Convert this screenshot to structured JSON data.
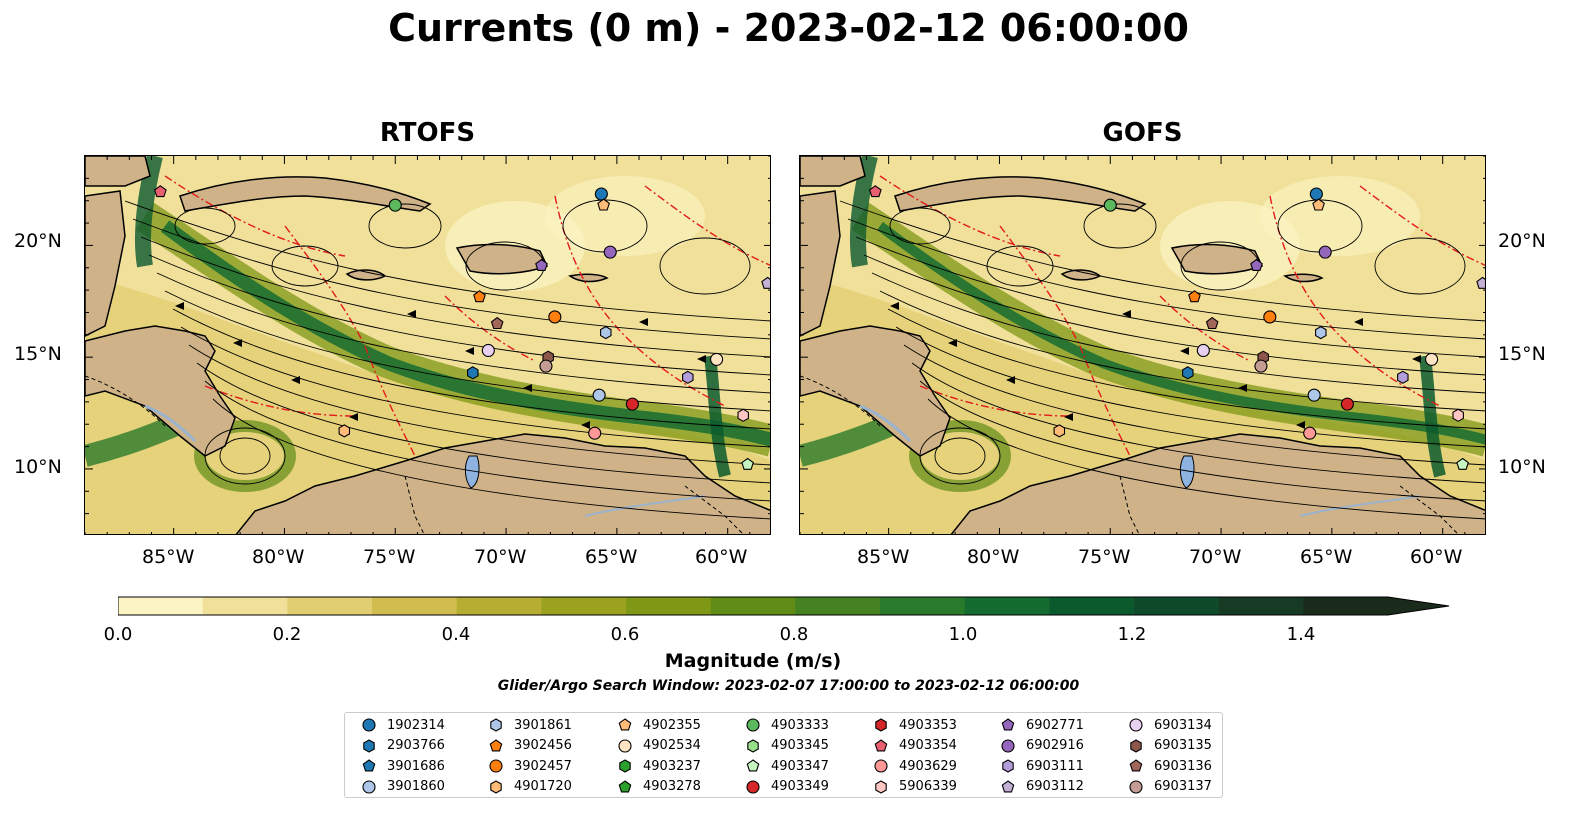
{
  "title": "Currents (0 m) - 2023-02-12 06:00:00",
  "panels": [
    {
      "title": "RTOFS"
    },
    {
      "title": "GOFS"
    }
  ],
  "x_ticks": [
    "85°W",
    "80°W",
    "75°W",
    "70°W",
    "65°W",
    "60°W"
  ],
  "y_ticks": [
    "20°N",
    "15°N",
    "10°N"
  ],
  "map_extent": {
    "lon": [
      -89,
      -58
    ],
    "lat": [
      7,
      24
    ]
  },
  "colorbar": {
    "label": "Magnitude (m/s)",
    "ticks": [
      "0.0",
      "0.2",
      "0.4",
      "0.6",
      "0.8",
      "1.0",
      "1.2",
      "1.4"
    ],
    "range": [
      0,
      1.5
    ],
    "colors": [
      "#fbf4c3",
      "#f0e09a",
      "#e2ce72",
      "#d1bd4f",
      "#b8ad33",
      "#9aa21f",
      "#7f9816",
      "#618c18",
      "#458322",
      "#2a7a2b",
      "#156c30",
      "#0b5a2e",
      "#0f4a2b",
      "#173a25",
      "#1a2b1b"
    ]
  },
  "search_window": "Glider/Argo Search Window: 2023-02-07 17:00:00 to 2023-02-12 06:00:00",
  "legend": [
    {
      "id": "1902314",
      "shape": "circle",
      "color": "#1f77b4"
    },
    {
      "id": "2903766",
      "shape": "hexagon",
      "color": "#1f77b4"
    },
    {
      "id": "3901686",
      "shape": "pentagon",
      "color": "#1f77b4"
    },
    {
      "id": "3901860",
      "shape": "circle",
      "color": "#aec7e8"
    },
    {
      "id": "3901861",
      "shape": "hexagon",
      "color": "#aec7e8"
    },
    {
      "id": "3902456",
      "shape": "pentagon",
      "color": "#ff7f0e"
    },
    {
      "id": "3902457",
      "shape": "circle",
      "color": "#ff7f0e"
    },
    {
      "id": "4901720",
      "shape": "hexagon",
      "color": "#ffbb78"
    },
    {
      "id": "4902355",
      "shape": "pentagon",
      "color": "#ffbb78"
    },
    {
      "id": "4902534",
      "shape": "circle",
      "color": "#ffe4c4"
    },
    {
      "id": "4903237",
      "shape": "hexagon",
      "color": "#2ca02c"
    },
    {
      "id": "4903278",
      "shape": "pentagon",
      "color": "#2ca02c"
    },
    {
      "id": "4903333",
      "shape": "circle",
      "color": "#5cb85c"
    },
    {
      "id": "4903345",
      "shape": "hexagon",
      "color": "#98df8a"
    },
    {
      "id": "4903347",
      "shape": "pentagon",
      "color": "#c7f5c0"
    },
    {
      "id": "4903349",
      "shape": "circle",
      "color": "#d62728"
    },
    {
      "id": "4903353",
      "shape": "hexagon",
      "color": "#d62728"
    },
    {
      "id": "4903354",
      "shape": "pentagon",
      "color": "#e8606f"
    },
    {
      "id": "4903629",
      "shape": "circle",
      "color": "#ff9896"
    },
    {
      "id": "5906339",
      "shape": "hexagon",
      "color": "#ffc6c4"
    },
    {
      "id": "6902771",
      "shape": "pentagon",
      "color": "#9467bd"
    },
    {
      "id": "6902916",
      "shape": "circle",
      "color": "#9467bd"
    },
    {
      "id": "6903111",
      "shape": "hexagon",
      "color": "#b39ddb"
    },
    {
      "id": "6903112",
      "shape": "pentagon",
      "color": "#c5b0d5"
    },
    {
      "id": "6903134",
      "shape": "circle",
      "color": "#e8d0f0"
    },
    {
      "id": "6903135",
      "shape": "hexagon",
      "color": "#8c564b"
    },
    {
      "id": "6903136",
      "shape": "pentagon",
      "color": "#a0675a"
    },
    {
      "id": "6903137",
      "shape": "circle",
      "color": "#c49c94"
    }
  ],
  "floats": [
    {
      "lon": -65.7,
      "lat": 22.3,
      "color": "#1f77b4",
      "shape": "circle"
    },
    {
      "lon": -65.6,
      "lat": 21.8,
      "color": "#ffbb78",
      "shape": "pentagon"
    },
    {
      "lon": -75.0,
      "lat": 21.8,
      "color": "#5cb85c",
      "shape": "circle"
    },
    {
      "lon": -85.6,
      "lat": 22.4,
      "color": "#e8606f",
      "shape": "pentagon"
    },
    {
      "lon": -65.3,
      "lat": 19.7,
      "color": "#9467bd",
      "shape": "circle"
    },
    {
      "lon": -68.4,
      "lat": 19.1,
      "color": "#9467bd",
      "shape": "pentagon"
    },
    {
      "lon": -58.2,
      "lat": 18.3,
      "color": "#c5b0d5",
      "shape": "pentagon"
    },
    {
      "lon": -71.2,
      "lat": 17.7,
      "color": "#ff7f0e",
      "shape": "pentagon"
    },
    {
      "lon": -67.8,
      "lat": 16.8,
      "color": "#ff7f0e",
      "shape": "circle"
    },
    {
      "lon": -70.4,
      "lat": 16.5,
      "color": "#a0675a",
      "shape": "pentagon"
    },
    {
      "lon": -65.5,
      "lat": 16.1,
      "color": "#aec7e8",
      "shape": "hexagon"
    },
    {
      "lon": -70.8,
      "lat": 15.3,
      "color": "#e8d0f0",
      "shape": "circle"
    },
    {
      "lon": -68.1,
      "lat": 15.0,
      "color": "#8c564b",
      "shape": "hexagon"
    },
    {
      "lon": -68.2,
      "lat": 14.6,
      "color": "#c49c94",
      "shape": "circle"
    },
    {
      "lon": -60.5,
      "lat": 14.9,
      "color": "#ffe4c4",
      "shape": "circle"
    },
    {
      "lon": -71.5,
      "lat": 14.3,
      "color": "#1f77b4",
      "shape": "hexagon"
    },
    {
      "lon": -61.8,
      "lat": 14.1,
      "color": "#b39ddb",
      "shape": "hexagon"
    },
    {
      "lon": -65.8,
      "lat": 13.3,
      "color": "#aec7e8",
      "shape": "circle"
    },
    {
      "lon": -64.3,
      "lat": 12.9,
      "color": "#d62728",
      "shape": "circle"
    },
    {
      "lon": -59.3,
      "lat": 12.4,
      "color": "#ffc6c4",
      "shape": "hexagon"
    },
    {
      "lon": -77.3,
      "lat": 11.7,
      "color": "#ffbb78",
      "shape": "hexagon"
    },
    {
      "lon": -66.0,
      "lat": 11.6,
      "color": "#ff9896",
      "shape": "circle"
    },
    {
      "lon": -59.1,
      "lat": 10.2,
      "color": "#c7f5c0",
      "shape": "pentagon"
    }
  ]
}
